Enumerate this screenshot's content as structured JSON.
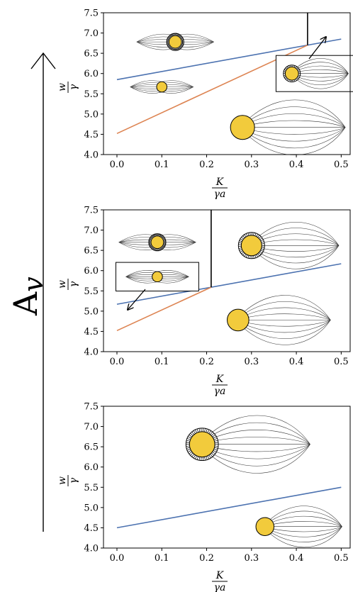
{
  "figure": {
    "side_label_base": "A",
    "side_label_sub": "v",
    "arrow_direction": "up"
  },
  "chart_data": [
    {
      "type": "line",
      "xlabel": {
        "num": "K",
        "den": "γa"
      },
      "ylabel": {
        "num": "w",
        "den": "γ"
      },
      "xlim": [
        -0.03,
        0.52
      ],
      "ylim": [
        4.0,
        7.5
      ],
      "xticks": [
        "0.0",
        "0.1",
        "0.2",
        "0.3",
        "0.4",
        "0.5"
      ],
      "xtick_values": [
        0.0,
        0.1,
        0.2,
        0.3,
        0.4,
        0.5
      ],
      "yticks": [
        "4.0",
        "4.5",
        "5.0",
        "5.5",
        "6.0",
        "6.5",
        "7.0",
        "7.5"
      ],
      "ytick_values": [
        4.0,
        4.5,
        5.0,
        5.5,
        6.0,
        6.5,
        7.0,
        7.5
      ],
      "grid": false,
      "series": [
        {
          "color": "#4c72b0",
          "x": [
            0.0,
            0.5
          ],
          "y": [
            5.85,
            6.85
          ]
        },
        {
          "color": "#dd8452",
          "x": [
            0.0,
            0.425
          ],
          "y": [
            4.52,
            6.7
          ]
        },
        {
          "color": "#000000",
          "x": [
            0.425,
            0.425
          ],
          "y": [
            6.7,
            7.5
          ]
        }
      ]
    },
    {
      "type": "line",
      "xlabel": {
        "num": "K",
        "den": "γa"
      },
      "ylabel": {
        "num": "w",
        "den": "γ"
      },
      "xlim": [
        -0.03,
        0.52
      ],
      "ylim": [
        4.0,
        7.5
      ],
      "xticks": [
        "0.0",
        "0.1",
        "0.2",
        "0.3",
        "0.4",
        "0.5"
      ],
      "xtick_values": [
        0.0,
        0.1,
        0.2,
        0.3,
        0.4,
        0.5
      ],
      "yticks": [
        "4.0",
        "4.5",
        "5.0",
        "5.5",
        "6.0",
        "6.5",
        "7.0",
        "7.5"
      ],
      "ytick_values": [
        4.0,
        4.5,
        5.0,
        5.5,
        6.0,
        6.5,
        7.0,
        7.5
      ],
      "grid": false,
      "series": [
        {
          "color": "#4c72b0",
          "x": [
            0.0,
            0.5
          ],
          "y": [
            5.17,
            6.17
          ]
        },
        {
          "color": "#dd8452",
          "x": [
            0.0,
            0.21
          ],
          "y": [
            4.52,
            5.59
          ]
        },
        {
          "color": "#000000",
          "x": [
            0.21,
            0.21
          ],
          "y": [
            5.59,
            7.5
          ]
        }
      ]
    },
    {
      "type": "line",
      "xlabel": {
        "num": "K",
        "den": "γa"
      },
      "ylabel": {
        "num": "w",
        "den": "γ"
      },
      "xlim": [
        -0.03,
        0.52
      ],
      "ylim": [
        4.0,
        7.5
      ],
      "xticks": [
        "0.0",
        "0.1",
        "0.2",
        "0.3",
        "0.4",
        "0.5"
      ],
      "xtick_values": [
        0.0,
        0.1,
        0.2,
        0.3,
        0.4,
        0.5
      ],
      "yticks": [
        "4.0",
        "4.5",
        "5.0",
        "5.5",
        "6.0",
        "6.5",
        "7.0",
        "7.5"
      ],
      "ytick_values": [
        4.0,
        4.5,
        5.0,
        5.5,
        6.0,
        6.5,
        7.0,
        7.5
      ],
      "grid": false,
      "series": [
        {
          "color": "#4c72b0",
          "x": [
            0.0,
            0.5
          ],
          "y": [
            4.5,
            5.5
          ]
        }
      ]
    }
  ],
  "illustrations": [
    [
      {
        "x": 0.13,
        "y": 6.78,
        "scale": 0.55,
        "shape": "spindle",
        "ring": "plain"
      },
      {
        "x": 0.1,
        "y": 5.67,
        "scale": 0.45,
        "shape": "spindle",
        "ring": "none"
      },
      {
        "x": 0.28,
        "y": 4.67,
        "scale": 1.0,
        "shape": "aster",
        "ring": "none"
      },
      {
        "x": 0.39,
        "y": 6.0,
        "scale": 0.55,
        "shape": "aster",
        "ring": "hatched",
        "boxed": true
      }
    ],
    [
      {
        "x": 0.09,
        "y": 6.7,
        "scale": 0.55,
        "shape": "spindle",
        "ring": "plain"
      },
      {
        "x": 0.09,
        "y": 5.85,
        "scale": 0.45,
        "shape": "spindle",
        "ring": "none",
        "boxed": true
      },
      {
        "x": 0.3,
        "y": 6.62,
        "scale": 0.85,
        "shape": "aster",
        "ring": "hatched"
      },
      {
        "x": 0.27,
        "y": 4.78,
        "scale": 0.9,
        "shape": "aster",
        "ring": "none"
      }
    ],
    [
      {
        "x": 0.19,
        "y": 6.56,
        "scale": 1.05,
        "shape": "aster",
        "ring": "hatched"
      },
      {
        "x": 0.33,
        "y": 4.53,
        "scale": 0.75,
        "shape": "aster",
        "ring": "none"
      }
    ]
  ]
}
